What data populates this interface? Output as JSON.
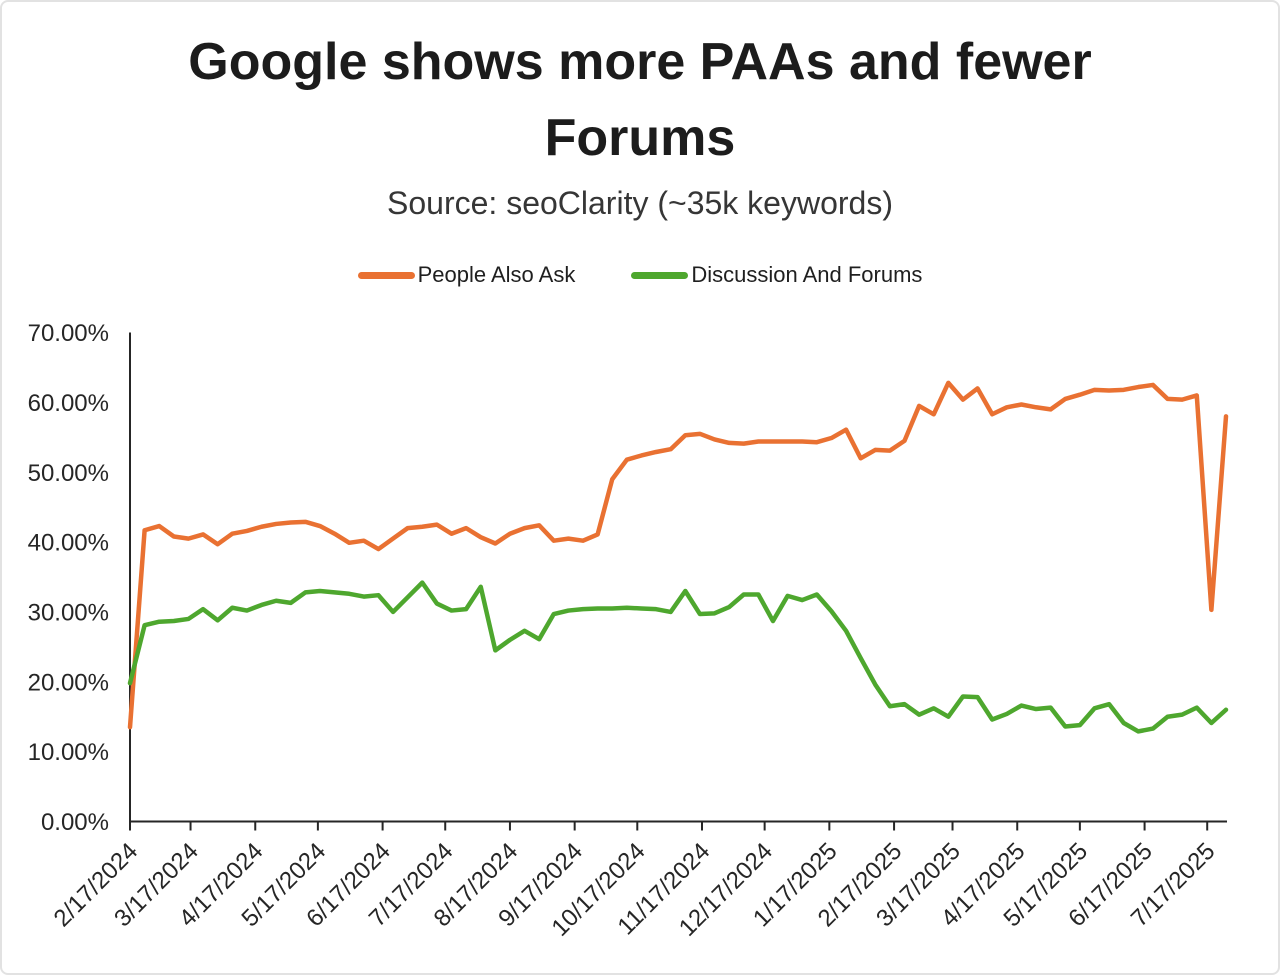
{
  "chart": {
    "title": "Google shows more PAAs and fewer Forums",
    "subtitle": "Source: seoClarity (~35k keywords)"
  },
  "legend": {
    "items": [
      {
        "label": "People Also Ask",
        "color": "#E97132"
      },
      {
        "label": "Discussion And Forums",
        "color": "#4EA72E"
      }
    ]
  },
  "chart_data": {
    "type": "line",
    "title": "Google shows more PAAs and fewer Forums",
    "subtitle": "Source: seoClarity (~35k keywords)",
    "grid": "off",
    "legend_position": "top",
    "ylim": [
      0,
      70
    ],
    "y_tick_labels": [
      "0.00%",
      "10.00%",
      "20.00%",
      "30.00%",
      "40.00%",
      "50.00%",
      "60.00%",
      "70.00%"
    ],
    "x_start_date": "2/17/2024",
    "x_interval_days": 7,
    "x_tick_labels": [
      "2/17/2024",
      "3/17/2024",
      "4/17/2024",
      "5/17/2024",
      "6/17/2024",
      "7/17/2024",
      "8/17/2024",
      "9/17/2024",
      "10/17/2024",
      "11/17/2024",
      "12/17/2024",
      "1/17/2025",
      "2/17/2025",
      "3/17/2025",
      "4/17/2025",
      "5/17/2025",
      "6/17/2025",
      "7/17/2025"
    ],
    "axis_color": "#262626",
    "series": [
      {
        "name": "People Also Ask",
        "color": "#E97132",
        "values": [
          13.5,
          41.7,
          42.3,
          40.8,
          40.5,
          41.1,
          39.7,
          41.2,
          41.6,
          42.2,
          42.6,
          42.8,
          42.9,
          42.3,
          41.2,
          39.9,
          40.2,
          39.0,
          40.5,
          42.0,
          42.2,
          42.5,
          41.2,
          42.0,
          40.7,
          39.8,
          41.2,
          42.0,
          42.4,
          40.2,
          40.5,
          40.2,
          41.1,
          49.0,
          51.8,
          52.4,
          52.9,
          53.3,
          55.3,
          55.5,
          54.7,
          54.2,
          54.1,
          54.4,
          54.4,
          54.4,
          54.4,
          54.3,
          54.9,
          56.1,
          52.0,
          53.2,
          53.1,
          54.5,
          59.5,
          58.3,
          62.8,
          60.4,
          62.0,
          58.3,
          59.3,
          59.7,
          59.3,
          59.0,
          60.5,
          61.1,
          61.8,
          61.7,
          61.8,
          62.2,
          62.5,
          60.5,
          60.4,
          61.0,
          30.3,
          58.0
        ]
      },
      {
        "name": "Discussion And Forums",
        "color": "#4EA72E",
        "values": [
          19.8,
          28.1,
          28.6,
          28.7,
          29.0,
          30.4,
          28.8,
          30.6,
          30.2,
          31.0,
          31.6,
          31.3,
          32.8,
          33.0,
          32.8,
          32.6,
          32.2,
          32.4,
          30.0,
          32.1,
          34.2,
          31.2,
          30.2,
          30.4,
          33.6,
          24.5,
          26.0,
          27.3,
          26.1,
          29.7,
          30.2,
          30.4,
          30.5,
          30.5,
          30.6,
          30.5,
          30.4,
          30.0,
          33.0,
          29.7,
          29.8,
          30.7,
          32.5,
          32.5,
          28.7,
          32.3,
          31.7,
          32.5,
          30.1,
          27.3,
          23.4,
          19.6,
          16.5,
          16.8,
          15.3,
          16.2,
          15.0,
          17.9,
          17.8,
          14.6,
          15.4,
          16.6,
          16.1,
          16.3,
          13.6,
          13.8,
          16.2,
          16.8,
          14.1,
          12.9,
          13.3,
          15.0,
          15.3,
          16.3,
          14.1,
          16.0
        ]
      }
    ]
  }
}
